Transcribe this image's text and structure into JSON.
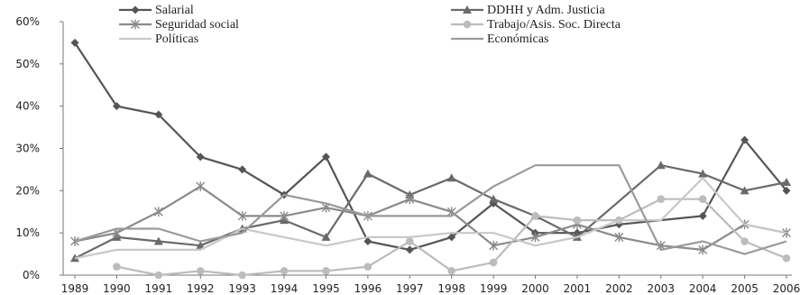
{
  "chart_data": {
    "type": "line",
    "title": "",
    "xlabel": "",
    "ylabel": "",
    "categories": [
      "1989",
      "1990",
      "1991",
      "1992",
      "1993",
      "1994",
      "1995",
      "1996",
      "1997",
      "1998",
      "1999",
      "2000",
      "2001",
      "2002",
      "2003",
      "2004",
      "2005",
      "2006"
    ],
    "ylim": [
      0,
      60
    ],
    "y_ticks": [
      "0%",
      "10%",
      "20%",
      "30%",
      "40%",
      "50%",
      "60%"
    ],
    "grid": false,
    "legend_position": "top",
    "series": [
      {
        "name": "Salarial",
        "marker": "diamond",
        "color": "#555555",
        "values": [
          55,
          40,
          38,
          28,
          25,
          19,
          28,
          8,
          6,
          9,
          17,
          10,
          10,
          12,
          null,
          14,
          32,
          20
        ]
      },
      {
        "name": "DDHH y Adm. Justicia",
        "marker": "triangle",
        "color": "#6a6a6a",
        "values": [
          4,
          9,
          8,
          7,
          11,
          13,
          9,
          24,
          19,
          23,
          18,
          14,
          9,
          null,
          26,
          24,
          20,
          22
        ]
      },
      {
        "name": "Seguridad social",
        "marker": "star",
        "color": "#8a8a8a",
        "values": [
          8,
          10,
          15,
          21,
          14,
          14,
          16,
          14,
          18,
          15,
          7,
          9,
          12,
          9,
          7,
          6,
          12,
          10
        ]
      },
      {
        "name": "Trabajo/Asis. Soc. Directa",
        "marker": "circle",
        "color": "#bcbcbc",
        "values": [
          null,
          2,
          0,
          1,
          0,
          1,
          1,
          2,
          8,
          1,
          3,
          14,
          13,
          13,
          18,
          18,
          8,
          4
        ]
      },
      {
        "name": "Políticas",
        "marker": "none",
        "color": "#c8c8c8",
        "values": [
          4,
          6,
          6,
          6,
          11,
          9,
          7,
          9,
          9,
          10,
          10,
          7,
          9,
          13,
          13,
          23,
          12,
          10
        ]
      },
      {
        "name": "Económicas",
        "marker": "none",
        "color": "#9a9a9a",
        "values": [
          8,
          11,
          11,
          8,
          10,
          19,
          17,
          14,
          14,
          14,
          21,
          26,
          26,
          26,
          6,
          8,
          5,
          8
        ]
      }
    ]
  }
}
